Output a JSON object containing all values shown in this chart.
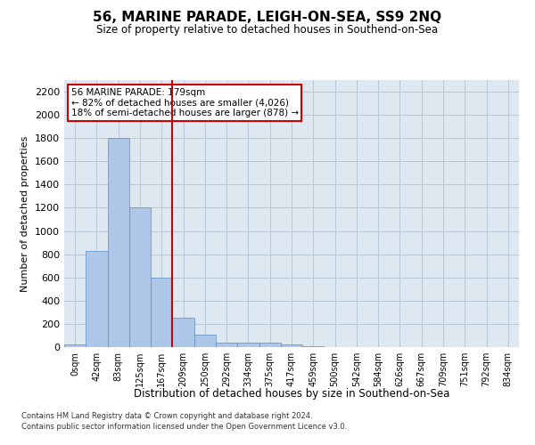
{
  "title": "56, MARINE PARADE, LEIGH-ON-SEA, SS9 2NQ",
  "subtitle": "Size of property relative to detached houses in Southend-on-Sea",
  "xlabel": "Distribution of detached houses by size in Southend-on-Sea",
  "ylabel": "Number of detached properties",
  "footnote1": "Contains HM Land Registry data © Crown copyright and database right 2024.",
  "footnote2": "Contains public sector information licensed under the Open Government Licence v3.0.",
  "bar_labels": [
    "0sqm",
    "42sqm",
    "83sqm",
    "125sqm",
    "167sqm",
    "209sqm",
    "250sqm",
    "292sqm",
    "334sqm",
    "375sqm",
    "417sqm",
    "459sqm",
    "500sqm",
    "542sqm",
    "584sqm",
    "626sqm",
    "667sqm",
    "709sqm",
    "751sqm",
    "792sqm",
    "834sqm"
  ],
  "bar_values": [
    20,
    830,
    1800,
    1200,
    600,
    250,
    110,
    40,
    35,
    35,
    20,
    10,
    3,
    2,
    1,
    1,
    1,
    0,
    0,
    0,
    0
  ],
  "bar_color": "#aec6e8",
  "bar_edge_color": "#5a8fc2",
  "ylim": [
    0,
    2300
  ],
  "yticks": [
    0,
    200,
    400,
    600,
    800,
    1000,
    1200,
    1400,
    1600,
    1800,
    2000,
    2200
  ],
  "vline_x": 4.5,
  "vline_color": "#cc0000",
  "annotation_title": "56 MARINE PARADE: 179sqm",
  "annotation_line1": "← 82% of detached houses are smaller (4,026)",
  "annotation_line2": "18% of semi-detached houses are larger (878) →",
  "background_color": "#ffffff",
  "plot_bg_color": "#dde8f0",
  "grid_color": "#b8c8d8"
}
